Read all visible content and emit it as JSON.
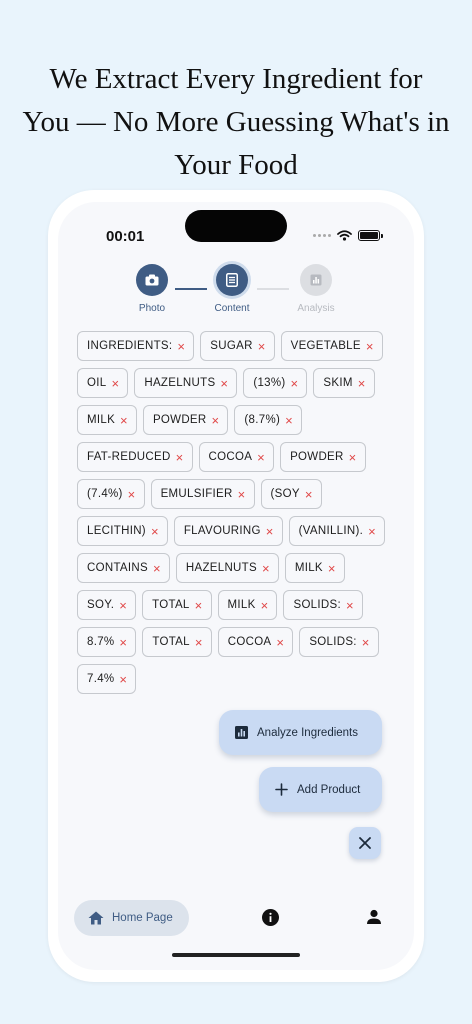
{
  "headline": [
    "We Extract Every Ingredient for",
    "You — No More Guessing What's in",
    "Your Food"
  ],
  "status": {
    "time": "00:01"
  },
  "stepper": {
    "steps": [
      {
        "label": "Photo",
        "icon": "camera-icon",
        "state": "done"
      },
      {
        "label": "Content",
        "icon": "document-icon",
        "state": "current"
      },
      {
        "label": "Analysis",
        "icon": "chart-icon",
        "state": "inactive"
      }
    ]
  },
  "ingredients": [
    "INGREDIENTS:",
    "SUGAR",
    "VEGETABLE",
    "OIL",
    "HAZELNUTS",
    "(13%)",
    "SKIM",
    "MILK",
    "POWDER",
    "(8.7%)",
    "FAT-REDUCED",
    "COCOA",
    "POWDER",
    "(7.4%)",
    "EMULSIFIER",
    "(SOY",
    "LECITHIN)",
    "FLAVOURING",
    "(VANILLIN).",
    "CONTAINS",
    "HAZELNUTS",
    "MILK",
    "SOY.",
    "TOTAL",
    "MILK",
    "SOLIDS:",
    "8.7%",
    "TOTAL",
    "COCOA",
    "SOLIDS:",
    "7.4%"
  ],
  "chip_remove_symbol": "×",
  "actions": {
    "analyze_label": "Analyze Ingredients",
    "add_label": "Add Product",
    "close_symbol": "✕"
  },
  "bottom_nav": {
    "home_label": "Home Page"
  },
  "colors": {
    "primary": "#3f5c84",
    "fab_bg": "#c9daf3",
    "remove_x": "#e04848",
    "background": "#e9f4fc"
  }
}
